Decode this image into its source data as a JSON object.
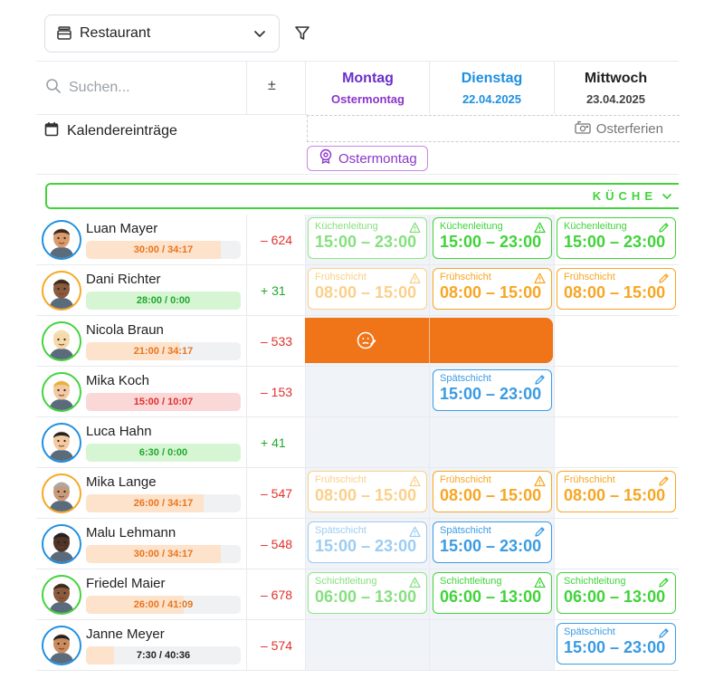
{
  "toolbar": {
    "location_label": "Restaurant",
    "icons": {
      "location": "store-icon",
      "chevron": "chevron-down-icon",
      "filter": "filter-icon"
    }
  },
  "search": {
    "placeholder": "Suchen..."
  },
  "plus_minus": "±",
  "days": [
    {
      "name": "Montag",
      "sub": "Ostermontag",
      "name_color": "#6a2fc9",
      "sub_color": "#8b35c8"
    },
    {
      "name": "Dienstag",
      "sub": "22.04.2025",
      "name_color": "#1e8fe0",
      "sub_color": "#1e8fe0"
    },
    {
      "name": "Mittwoch",
      "sub": "23.04.2025",
      "name_color": "#222222",
      "sub_color": "#444444"
    }
  ],
  "calendar": {
    "title": "Kalendereinträge",
    "vacation_label": "Osterferien",
    "holiday_label": "Ostermontag"
  },
  "department": {
    "label": "KÜCHE",
    "color": "#41d33a"
  },
  "colors": {
    "green": "#41d33a",
    "orange": "#f7a623",
    "blue": "#3a9be3",
    "red": "#e0302c",
    "positive": "#1fa82b",
    "absence": "#f07418"
  },
  "employees": [
    {
      "name": "Luan Mayer",
      "hours": "30:00 / 34:17",
      "progress_percent": 87,
      "hours_status": "under",
      "balance": "– 624",
      "balance_sign": "neg"
    },
    {
      "name": "Dani Richter",
      "hours": "28:00 / 0:00",
      "progress_percent": 100,
      "hours_status": "ok",
      "balance": "+ 31",
      "balance_sign": "pos"
    },
    {
      "name": "Nicola Braun",
      "hours": "21:00 / 34:17",
      "progress_percent": 61,
      "hours_status": "under",
      "balance": "– 533",
      "balance_sign": "neg"
    },
    {
      "name": "Mika Koch",
      "hours": "15:00 / 10:07",
      "progress_percent": 100,
      "hours_status": "over",
      "balance": "– 153",
      "balance_sign": "neg"
    },
    {
      "name": "Luca Hahn",
      "hours": "6:30 / 0:00",
      "progress_percent": 100,
      "hours_status": "ok",
      "balance": "+ 41",
      "balance_sign": "pos"
    },
    {
      "name": "Mika Lange",
      "hours": "26:00 / 34:17",
      "progress_percent": 76,
      "hours_status": "under",
      "balance": "– 547",
      "balance_sign": "neg"
    },
    {
      "name": "Malu Lehmann",
      "hours": "30:00 / 34:17",
      "progress_percent": 87,
      "hours_status": "under",
      "balance": "– 548",
      "balance_sign": "neg"
    },
    {
      "name": "Friedel Maier",
      "hours": "26:00 / 41:09",
      "progress_percent": 63,
      "hours_status": "under",
      "balance": "– 678",
      "balance_sign": "neg"
    },
    {
      "name": "Janne Meyer",
      "hours": "7:30 / 40:36",
      "progress_percent": 18,
      "hours_status": "under",
      "balance": "– 574",
      "balance_sign": "neg"
    }
  ],
  "shifts": [
    {
      "row": 0,
      "day": 0,
      "title": "Küchenleitung",
      "time": "15:00 – 23:00",
      "color": "green",
      "faded": true,
      "icon": "warning-icon"
    },
    {
      "row": 0,
      "day": 1,
      "title": "Küchenleitung",
      "time": "15:00 – 23:00",
      "color": "green",
      "faded": false,
      "icon": "warning-icon"
    },
    {
      "row": 0,
      "day": 2,
      "title": "Küchenleitung",
      "time": "15:00 – 23:00",
      "color": "green",
      "faded": false,
      "icon": "pencil-icon"
    },
    {
      "row": 1,
      "day": 0,
      "title": "Frühschicht",
      "time": "08:00 – 15:00",
      "color": "orange",
      "faded": true,
      "icon": "warning-icon"
    },
    {
      "row": 1,
      "day": 1,
      "title": "Frühschicht",
      "time": "08:00 – 15:00",
      "color": "orange",
      "faded": false,
      "icon": "warning-icon"
    },
    {
      "row": 1,
      "day": 2,
      "title": "Frühschicht",
      "time": "08:00 – 15:00",
      "color": "orange",
      "faded": false,
      "icon": "pencil-icon"
    },
    {
      "row": 3,
      "day": 1,
      "title": "Spätschicht",
      "time": "15:00 – 23:00",
      "color": "blue",
      "faded": false,
      "icon": "pencil-icon"
    },
    {
      "row": 5,
      "day": 0,
      "title": "Frühschicht",
      "time": "08:00 – 15:00",
      "color": "orange",
      "faded": true,
      "icon": "warning-icon"
    },
    {
      "row": 5,
      "day": 1,
      "title": "Frühschicht",
      "time": "08:00 – 15:00",
      "color": "orange",
      "faded": false,
      "icon": "warning-icon"
    },
    {
      "row": 5,
      "day": 2,
      "title": "Frühschicht",
      "time": "08:00 – 15:00",
      "color": "orange",
      "faded": false,
      "icon": "pencil-icon"
    },
    {
      "row": 6,
      "day": 0,
      "title": "Spätschicht",
      "time": "15:00 – 23:00",
      "color": "blue",
      "faded": true,
      "icon": "warning-icon"
    },
    {
      "row": 6,
      "day": 1,
      "title": "Spätschicht",
      "time": "15:00 – 23:00",
      "color": "blue",
      "faded": false,
      "icon": "pencil-icon"
    },
    {
      "row": 7,
      "day": 0,
      "title": "Schichtleitung",
      "time": "06:00 – 13:00",
      "color": "green",
      "faded": true,
      "icon": "warning-icon"
    },
    {
      "row": 7,
      "day": 1,
      "title": "Schichtleitung",
      "time": "06:00 – 13:00",
      "color": "green",
      "faded": false,
      "icon": "warning-icon"
    },
    {
      "row": 7,
      "day": 2,
      "title": "Schichtleitung",
      "time": "06:00 – 13:00",
      "color": "green",
      "faded": false,
      "icon": "pencil-icon"
    },
    {
      "row": 8,
      "day": 2,
      "title": "Spätschicht",
      "time": "15:00 – 23:00",
      "color": "blue",
      "faded": false,
      "icon": "pencil-icon"
    }
  ],
  "absence": {
    "row": 2,
    "days": [
      0,
      1
    ],
    "icon": "sick-face-icon"
  }
}
